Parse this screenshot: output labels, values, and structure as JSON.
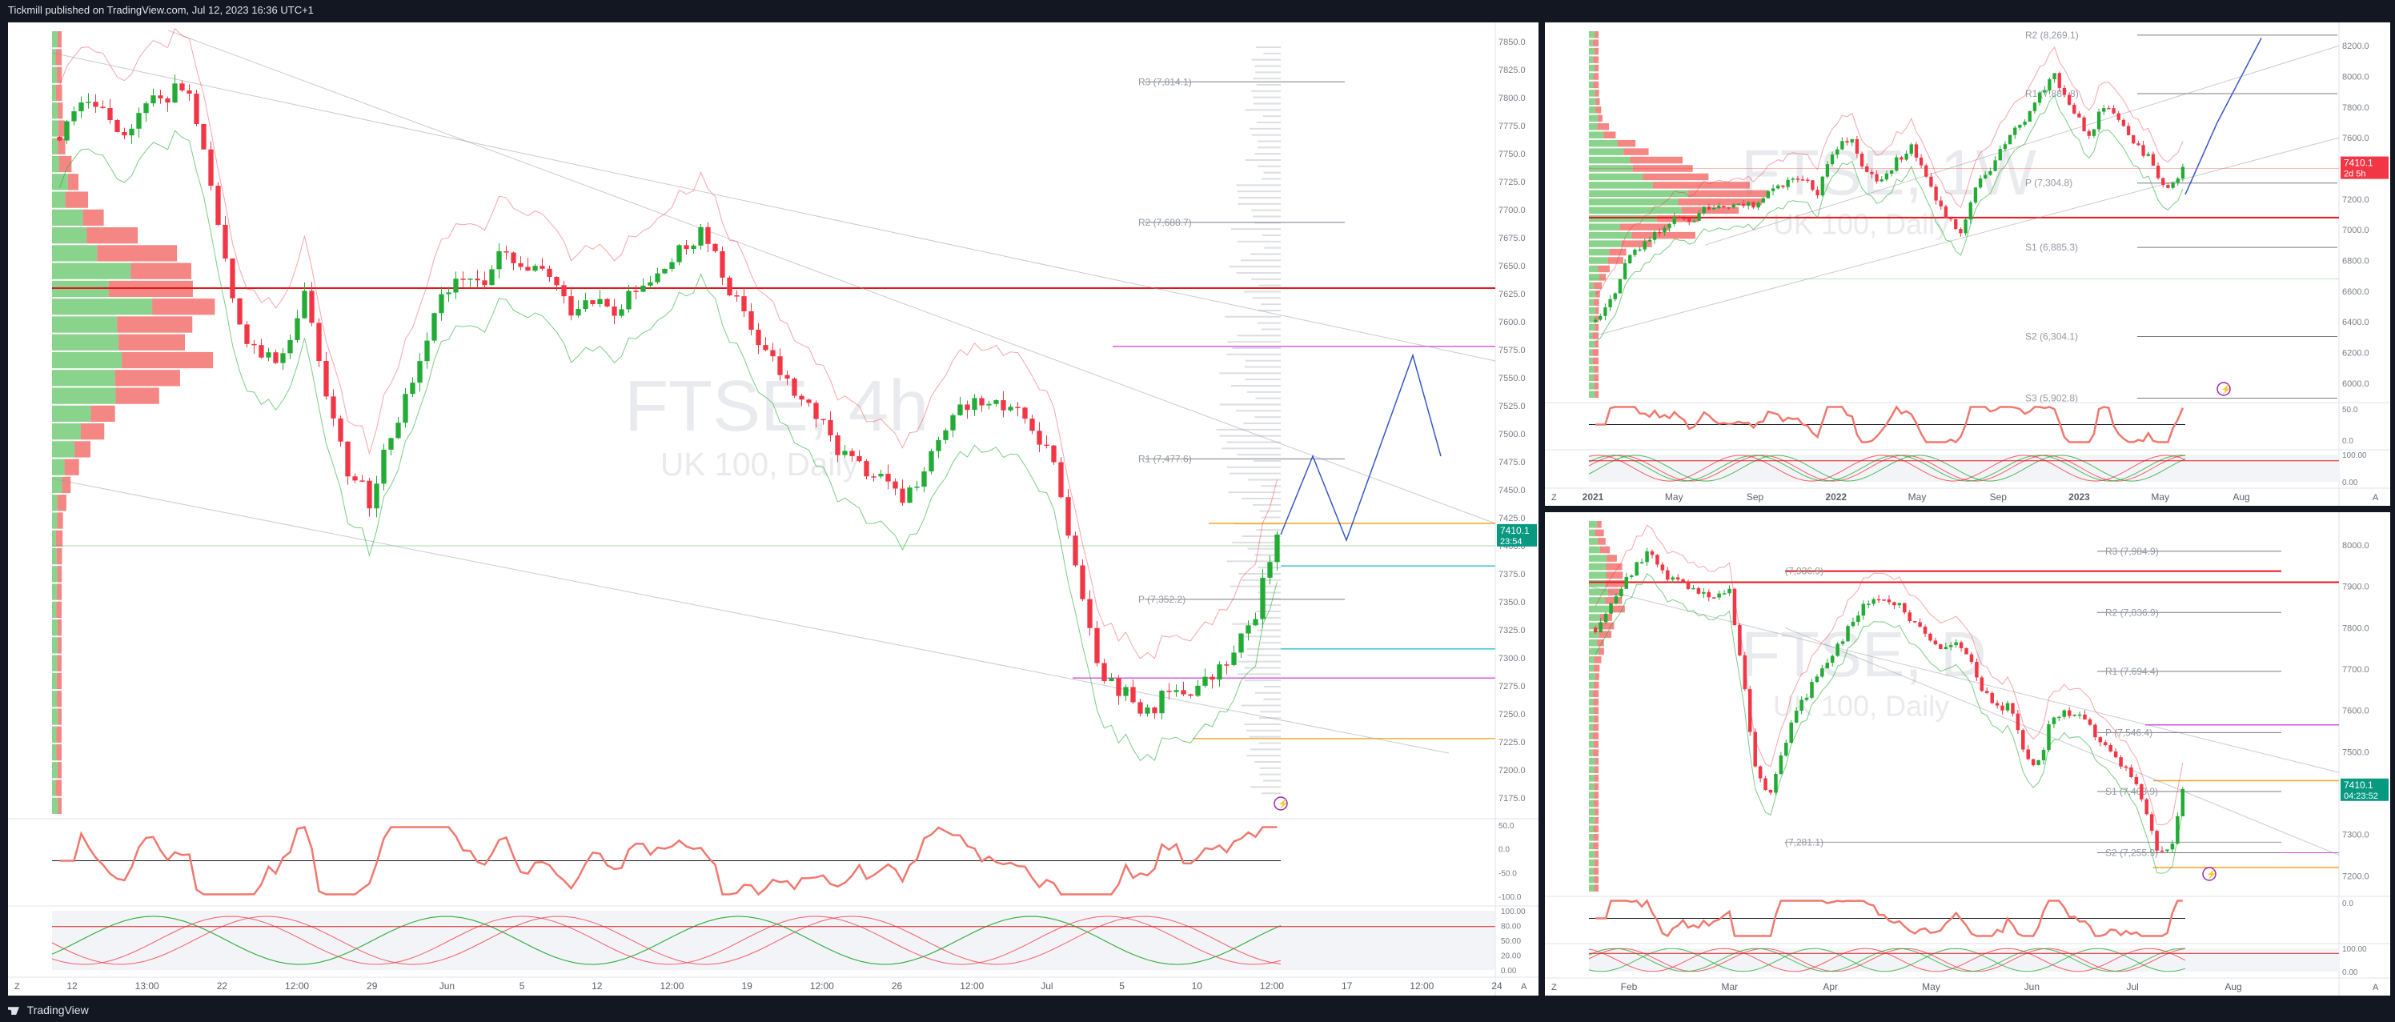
{
  "header": {
    "publisher_line": "Tickmill published on TradingView.com, Jul 12, 2023 16:36 UTC+1"
  },
  "footer": {
    "brand": "TradingView"
  },
  "panels": {
    "left": {
      "watermark_symbol": "FTSE, 4h",
      "watermark_name": "UK 100, Daily",
      "x_ticks": [
        "12",
        "13:00",
        "22",
        "12:00",
        "29",
        "Jun",
        "5",
        "12",
        "12:00",
        "19",
        "12:00",
        "26",
        "12:00",
        "Jul",
        "5",
        "10",
        "12:00",
        "17",
        "12:00",
        "24"
      ],
      "y_ticks": [
        "7850.0",
        "7825.0",
        "7800.0",
        "7775.0",
        "7750.0",
        "7725.0",
        "7700.0",
        "7675.0",
        "7650.0",
        "7625.0",
        "7600.0",
        "7575.0",
        "7550.0",
        "7525.0",
        "7500.0",
        "7475.0",
        "7450.0",
        "7425.0",
        "7400.0",
        "7375.0",
        "7350.0",
        "7325.0",
        "7300.0",
        "7275.0",
        "7250.0",
        "7225.0",
        "7200.0",
        "7175.0"
      ],
      "pivots": [
        {
          "label": "R3 (7,814.1)",
          "value": 7814.1
        },
        {
          "label": "R2 (7,688.7)",
          "value": 7688.7
        },
        {
          "label": "R1 (7,477.6)",
          "value": 7477.6
        },
        {
          "label": "P (7,352.2)",
          "value": 7352.2
        }
      ],
      "price_tag": "7410.1",
      "timer": "23:54",
      "rsi_ticks": [
        "50.0",
        "0.0",
        "-50.0",
        "-100.0"
      ],
      "stoch_ticks": [
        "100.00",
        "80.00",
        "50.00",
        "20.00",
        "0.00"
      ],
      "scale_button_left": "Z",
      "scale_button_right": "A"
    },
    "top_right": {
      "watermark_symbol": "FTSE, 1W",
      "watermark_name": "UK 100, Daily",
      "x_ticks": [
        "2021",
        "May",
        "Sep",
        "2022",
        "May",
        "Sep",
        "2023",
        "May",
        "Aug"
      ],
      "y_ticks": [
        "8200.0",
        "8000.0",
        "7800.0",
        "7600.0",
        "7400.0",
        "7200.0",
        "7000.0",
        "6800.0",
        "6600.0",
        "6400.0",
        "6200.0",
        "6000.0"
      ],
      "pivots": [
        {
          "label": "R2 (8,269.1)",
          "value": 8269.1
        },
        {
          "label": "R1 (7,887.8)",
          "value": 7887.8
        },
        {
          "label": "P (7,304.8)",
          "value": 7304.8
        },
        {
          "label": "S1 (6,885.3)",
          "value": 6885.3
        },
        {
          "label": "S2 (6,304.1)",
          "value": 6304.1
        },
        {
          "label": "S3 (5,902.8)",
          "value": 5902.8
        }
      ],
      "price_tag": "7410.1",
      "timer": "2d 5h",
      "rsi_ticks": [
        "50.0",
        "0.0"
      ],
      "stoch_ticks": [
        "100.00",
        "0.00"
      ],
      "scale_button_left": "Z",
      "scale_button_right": "A"
    },
    "bottom_right": {
      "watermark_symbol": "FTSE, D",
      "watermark_name": "UK 100, Daily",
      "x_ticks": [
        "Feb",
        "Mar",
        "Apr",
        "May",
        "Jun",
        "Jul",
        "Aug"
      ],
      "y_ticks": [
        "8000.0",
        "7900.0",
        "7800.0",
        "7700.0",
        "7600.0",
        "7500.0",
        "7400.0",
        "7300.0",
        "7200.0"
      ],
      "pivots": [
        {
          "label": "R3 (7,984.9)",
          "value": 7984.9
        },
        {
          "label": "R2 (7,836.9)",
          "value": 7836.9
        },
        {
          "label": "R1 (7,694.4)",
          "value": 7694.4
        },
        {
          "label": "P (7,546.4)",
          "value": 7546.4
        },
        {
          "label": "S1 (7,403.9)",
          "value": 7403.9
        },
        {
          "label": "S2 (7,255.9)",
          "value": 7255.9
        }
      ],
      "extra_labels": [
        {
          "label": "(7,936.9)",
          "value": 7936.9
        },
        {
          "label": "(7,281.1)",
          "value": 7281.1
        }
      ],
      "price_tag": "7410.1",
      "timer": "04:23:52",
      "rsi_ticks": [
        "0.0"
      ],
      "stoch_ticks": [
        "100.00",
        "0.00"
      ],
      "scale_button_left": "Z",
      "scale_button_right": "A"
    }
  },
  "colors": {
    "up": "#22ab35",
    "down": "#f23645",
    "bg": "#ffffff",
    "frame": "#131722",
    "resistance": "#e0181d",
    "magenta": "#d54ede",
    "orange": "#f5a623",
    "teal": "#29c0c6",
    "projection": "#3557c9",
    "volume_up": "#63c466",
    "volume_down": "#f0524f"
  },
  "chart_data": [
    {
      "type": "candlestick",
      "panel": "left",
      "title": "FTSE, 4h",
      "ylim": [
        7160,
        7860
      ],
      "close_path_approx": [
        7765,
        7800,
        7790,
        7770,
        7795,
        7805,
        7800,
        7700,
        7600,
        7575,
        7560,
        7630,
        7545,
        7470,
        7440,
        7500,
        7555,
        7610,
        7650,
        7630,
        7660,
        7640,
        7645,
        7610,
        7625,
        7605,
        7625,
        7640,
        7660,
        7680,
        7640,
        7600,
        7570,
        7540,
        7520,
        7490,
        7470,
        7460,
        7440,
        7465,
        7500,
        7530,
        7520,
        7525,
        7510,
        7465,
        7380,
        7290,
        7270,
        7250,
        7265,
        7270,
        7280,
        7300,
        7340,
        7410
      ],
      "current_price": 7410.1,
      "series_names": []
    },
    {
      "type": "candlestick",
      "panel": "top_right",
      "title": "FTSE, 1W",
      "ylim": [
        5900,
        8300
      ],
      "close_path_approx": [
        6400,
        6550,
        6800,
        6900,
        7000,
        7100,
        7050,
        7150,
        7150,
        7200,
        7150,
        7250,
        7300,
        7350,
        7250,
        7500,
        7600,
        7400,
        7300,
        7450,
        7550,
        7300,
        7100,
        7000,
        7300,
        7400,
        7600,
        7700,
        7900,
        8000,
        7800,
        7600,
        7800,
        7700,
        7550,
        7450,
        7250,
        7410
      ],
      "current_price": 7410.1,
      "series_names": []
    },
    {
      "type": "candlestick",
      "panel": "bottom_right",
      "title": "FTSE, D",
      "ylim": [
        7160,
        8060
      ],
      "close_path_approx": [
        7800,
        7850,
        7900,
        7950,
        7990,
        7930,
        7920,
        7900,
        7880,
        7870,
        7900,
        7700,
        7450,
        7400,
        7500,
        7600,
        7650,
        7700,
        7750,
        7800,
        7850,
        7880,
        7870,
        7850,
        7800,
        7780,
        7750,
        7760,
        7740,
        7650,
        7600,
        7620,
        7500,
        7450,
        7560,
        7600,
        7590,
        7560,
        7520,
        7480,
        7450,
        7380,
        7270,
        7250,
        7410
      ],
      "current_price": 7410.1,
      "series_names": []
    }
  ]
}
